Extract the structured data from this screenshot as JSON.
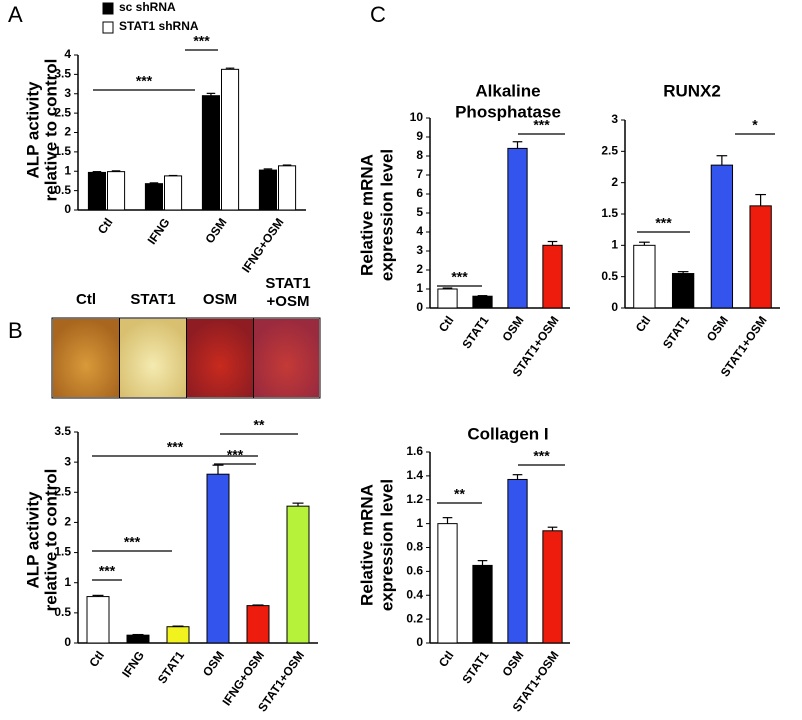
{
  "panel_labels": [
    "A",
    "B",
    "C"
  ],
  "wells": {
    "labels": [
      [
        "Ctl"
      ],
      [
        "STAT1"
      ],
      [
        "OSM"
      ],
      [
        "STAT1",
        "+OSM"
      ]
    ]
  },
  "chart_data": [
    {
      "type": "bar",
      "ylabel": [
        "ALP activity",
        "relative to control"
      ],
      "categories": [
        "Ctl",
        "IFNG",
        "OSM",
        "IFNG+OSM"
      ],
      "series": [
        {
          "name": "sc shRNA",
          "color": "#000000",
          "values": [
            0.97,
            0.68,
            2.95,
            1.03
          ],
          "errors": [
            0.02,
            0.02,
            0.06,
            0.03
          ]
        },
        {
          "name": "STAT1 shRNA",
          "color": "#ffffff",
          "values": [
            0.99,
            0.88,
            3.63,
            1.14
          ],
          "errors": [
            0.02,
            0.01,
            0.03,
            0.02
          ]
        }
      ],
      "ylim": [
        0,
        4
      ],
      "yticks": [
        0,
        0.5,
        1,
        1.5,
        2,
        2.5,
        3,
        3.5,
        4
      ],
      "annotations": [
        "***",
        "***"
      ]
    },
    {
      "type": "bar",
      "ylabel": [
        "ALP activity",
        "relative to control"
      ],
      "categories": [
        "Ctl",
        "IFNG",
        "STAT1",
        "OSM",
        "IFNG+OSM",
        "STAT1+OSM"
      ],
      "values": [
        0.77,
        0.13,
        0.27,
        2.8,
        0.62,
        2.27
      ],
      "errors": [
        0.02,
        0.01,
        0.01,
        0.15,
        0.01,
        0.05
      ],
      "colors": [
        "#ffffff",
        "#000000",
        "#f2f21e",
        "#3355ee",
        "#ee1c0c",
        "#b6f23a"
      ],
      "ylim": [
        0,
        3.5
      ],
      "yticks": [
        0,
        0.5,
        1,
        1.5,
        2,
        2.5,
        3,
        3.5
      ],
      "annotations": [
        "***",
        "***",
        "***",
        "***",
        "**"
      ]
    },
    {
      "type": "bar",
      "title": [
        "Alkaline",
        "Phosphatase"
      ],
      "ylabel": [
        "Relative mRNA",
        "expression level"
      ],
      "categories": [
        "Ctl",
        "STAT1",
        "OSM",
        "STAT1+OSM"
      ],
      "values": [
        1.0,
        0.62,
        8.4,
        3.3
      ],
      "errors": [
        0.05,
        0.03,
        0.35,
        0.2
      ],
      "colors": [
        "#ffffff",
        "#000000",
        "#3355ee",
        "#ee1c0c"
      ],
      "ylim": [
        0,
        10
      ],
      "yticks": [
        0,
        1,
        2,
        3,
        4,
        5,
        6,
        7,
        8,
        9,
        10
      ],
      "annotations": [
        "***",
        "***"
      ]
    },
    {
      "type": "bar",
      "title": [
        "RUNX2"
      ],
      "categories": [
        "Ctl",
        "STAT1",
        "OSM",
        "STAT1+OSM"
      ],
      "values": [
        1.0,
        0.55,
        2.28,
        1.63
      ],
      "errors": [
        0.05,
        0.03,
        0.15,
        0.18
      ],
      "colors": [
        "#ffffff",
        "#000000",
        "#3355ee",
        "#ee1c0c"
      ],
      "ylim": [
        0,
        3
      ],
      "yticks": [
        0,
        0.5,
        1,
        1.5,
        2,
        2.5,
        3
      ],
      "annotations": [
        "***",
        "*"
      ]
    },
    {
      "type": "bar",
      "title": [
        "Collagen I"
      ],
      "ylabel": [
        "Relative mRNA",
        "expression level"
      ],
      "categories": [
        "Ctl",
        "STAT1",
        "OSM",
        "STAT1+OSM"
      ],
      "values": [
        1.0,
        0.65,
        1.37,
        0.94
      ],
      "errors": [
        0.05,
        0.04,
        0.04,
        0.03
      ],
      "colors": [
        "#ffffff",
        "#000000",
        "#3355ee",
        "#ee1c0c"
      ],
      "ylim": [
        0,
        1.6
      ],
      "yticks": [
        0,
        0.2,
        0.4,
        0.6,
        0.8,
        1,
        1.2,
        1.4,
        1.6
      ],
      "annotations": [
        "**",
        "***"
      ]
    }
  ]
}
